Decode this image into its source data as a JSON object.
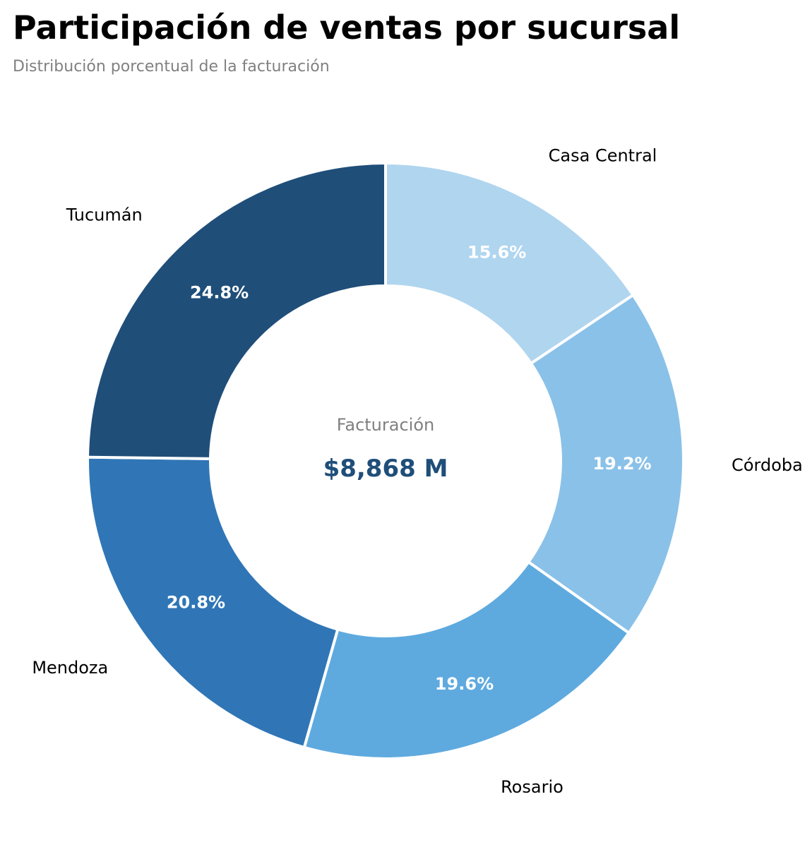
{
  "header": {
    "title": "Participación de ventas por sucursal",
    "subtitle": "Distribución porcentual de la facturación"
  },
  "center": {
    "caption": "Facturación",
    "value": "$8,868 M",
    "value_color": "#1f4e79"
  },
  "chart_data": {
    "type": "pie",
    "variant": "donut",
    "start": "12 o'clock",
    "direction": "clockwise",
    "legend": "none",
    "categories": [
      "Casa Central",
      "Córdoba",
      "Rosario",
      "Mendoza",
      "Tucumán"
    ],
    "values": [
      15.6,
      19.2,
      19.6,
      20.8,
      24.8
    ],
    "value_labels": [
      "15.6%",
      "19.2%",
      "19.6%",
      "20.8%",
      "24.8%"
    ],
    "colors": [
      "#b0d5ef",
      "#8ac1e8",
      "#5eaadf",
      "#3076b6",
      "#1f4e79"
    ]
  }
}
